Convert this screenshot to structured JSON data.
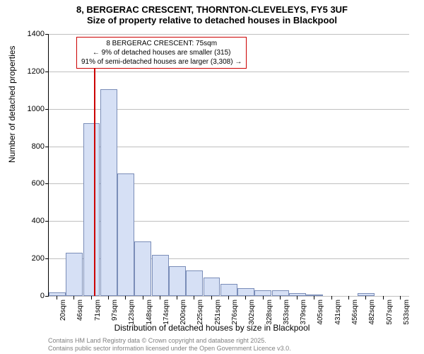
{
  "title_main": "8, BERGERAC CRESCENT, THORNTON-CLEVELEYS, FY5 3UF",
  "title_sub": "Size of property relative to detached houses in Blackpool",
  "chart": {
    "type": "histogram",
    "ylabel": "Number of detached properties",
    "xlabel": "Distribution of detached houses by size in Blackpool",
    "ylim": [
      0,
      1400
    ],
    "ytick_step": 200,
    "yticks": [
      0,
      200,
      400,
      600,
      800,
      1000,
      1200,
      1400
    ],
    "bar_fill": "#d6e0f5",
    "bar_stroke": "#7a8db8",
    "grid_color": "#c0c0c0",
    "background_color": "#ffffff",
    "marker_color": "#cc0000",
    "marker_x_value": 75,
    "categories": [
      "20sqm",
      "46sqm",
      "71sqm",
      "97sqm",
      "123sqm",
      "148sqm",
      "174sqm",
      "200sqm",
      "225sqm",
      "251sqm",
      "276sqm",
      "302sqm",
      "328sqm",
      "353sqm",
      "379sqm",
      "405sqm",
      "431sqm",
      "456sqm",
      "482sqm",
      "507sqm",
      "533sqm"
    ],
    "values": [
      20,
      230,
      925,
      1105,
      655,
      290,
      220,
      160,
      135,
      100,
      65,
      40,
      30,
      30,
      15,
      5,
      0,
      0,
      15,
      0,
      0
    ]
  },
  "annotation": {
    "line1": "8 BERGERAC CRESCENT: 75sqm",
    "line2": "← 9% of detached houses are smaller (315)",
    "line3": "91% of semi-detached houses are larger (3,308) →"
  },
  "footer": {
    "line1": "Contains HM Land Registry data © Crown copyright and database right 2025.",
    "line2": "Contains public sector information licensed under the Open Government Licence v3.0."
  }
}
